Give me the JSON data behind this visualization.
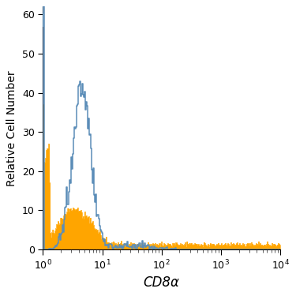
{
  "title": "",
  "xlabel": "CD8α",
  "ylabel": "Relative Cell Number",
  "xlim": [
    1,
    10000
  ],
  "ylim": [
    0,
    62
  ],
  "yticks": [
    0,
    10,
    20,
    30,
    40,
    50,
    60
  ],
  "orange_color": "#FFA500",
  "blue_color": "#5B8DB8",
  "dark_blue_spike": "#2B4A6B",
  "background_color": "#FFFFFF",
  "xlabel_fontsize": 12,
  "ylabel_fontsize": 10,
  "tick_fontsize": 9,
  "seed": 42
}
